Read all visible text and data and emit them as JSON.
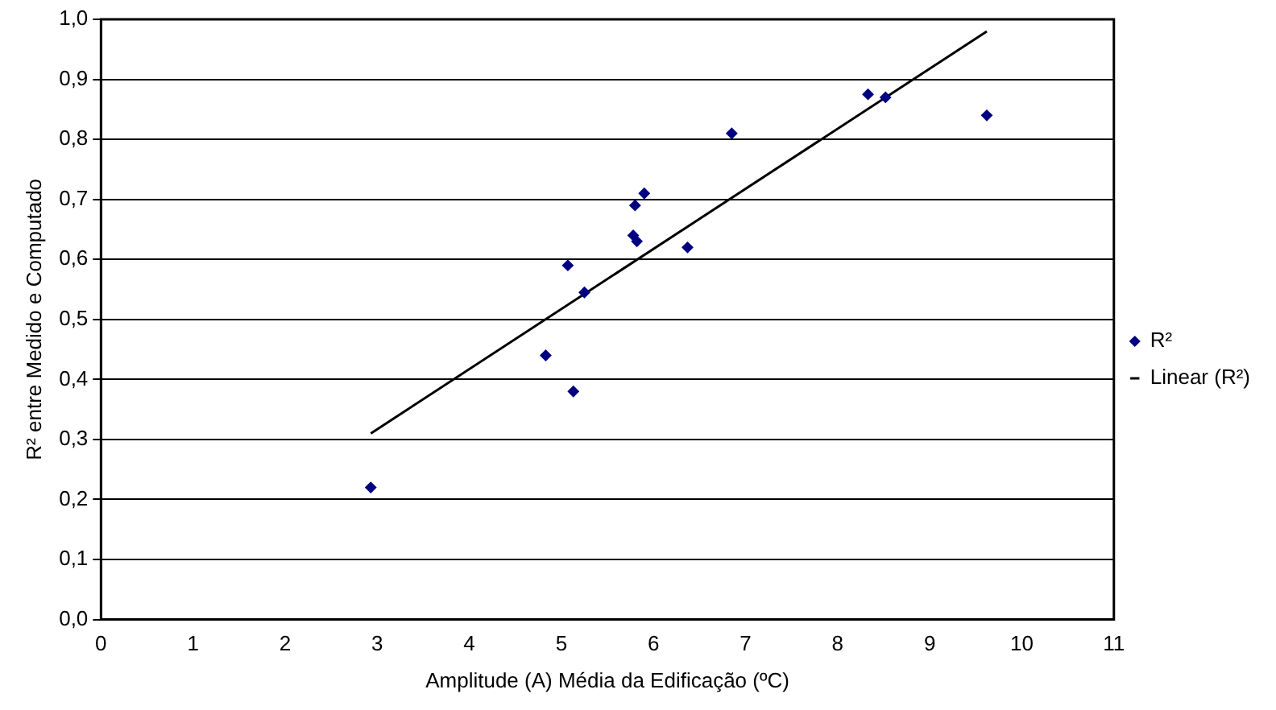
{
  "chart_data": {
    "type": "scatter",
    "xlabel": "Amplitude (A) Média da Edificação (ºC)",
    "ylabel": "R² entre Medido e Computado",
    "series": [
      {
        "name": "R²",
        "color": "#000080",
        "marker": "diamond",
        "x": [
          2.93,
          4.83,
          5.13,
          5.07,
          5.25,
          5.78,
          5.82,
          5.8,
          5.9,
          6.37,
          6.85,
          8.33,
          8.52,
          9.62
        ],
        "values": [
          0.22,
          0.44,
          0.38,
          0.59,
          0.545,
          0.64,
          0.63,
          0.69,
          0.71,
          0.62,
          0.81,
          0.875,
          0.87,
          0.84
        ]
      },
      {
        "name": "Linear (R²)",
        "type": "line",
        "color": "#000000",
        "marker": "none",
        "line_style": "solid",
        "x": [
          2.93,
          9.62
        ],
        "values": [
          0.31,
          0.98
        ]
      }
    ],
    "xlim": [
      0,
      11
    ],
    "xticks": [
      0,
      1,
      2,
      3,
      4,
      5,
      6,
      7,
      8,
      9,
      10,
      11
    ],
    "ylim": [
      0,
      1
    ],
    "yticks": [
      {
        "value": 0,
        "label": "0,0"
      },
      {
        "value": 0.1,
        "label": "0,1"
      },
      {
        "value": 0.2,
        "label": "0,2"
      },
      {
        "value": 0.3,
        "label": "0,3"
      },
      {
        "value": 0.4,
        "label": "0,4"
      },
      {
        "value": 0.5,
        "label": "0,5"
      },
      {
        "value": 0.6,
        "label": "0,6"
      },
      {
        "value": 0.7,
        "label": "0,7"
      },
      {
        "value": 0.8,
        "label": "0,8"
      },
      {
        "value": 0.9,
        "label": "0,9"
      },
      {
        "value": 1,
        "label": "1,0"
      }
    ],
    "grid": "y",
    "legend": "right"
  }
}
